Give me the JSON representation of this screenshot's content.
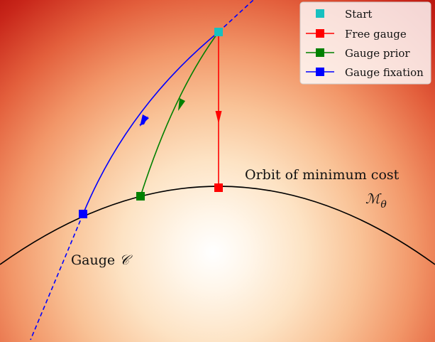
{
  "legend": {
    "items": [
      {
        "label": "Start",
        "color": "#17c0c0",
        "line": false
      },
      {
        "label": "Free gauge",
        "color": "#ff0000",
        "line": true
      },
      {
        "label": "Gauge prior",
        "color": "#008000",
        "line": true
      },
      {
        "label": "Gauge fixation",
        "color": "#0000ff",
        "line": true
      }
    ]
  },
  "labels": {
    "orbit": "Orbit of minimum cost",
    "orbit_symbol": "ℳ",
    "orbit_subscript": "θ",
    "gauge": "Gauge ",
    "gauge_symbol": "𝒞"
  },
  "colors": {
    "start": "#17c0c0",
    "free_gauge": "#ff0000",
    "gauge_prior": "#008000",
    "gauge_fixation": "#0000ff",
    "curve": "#000000"
  }
}
